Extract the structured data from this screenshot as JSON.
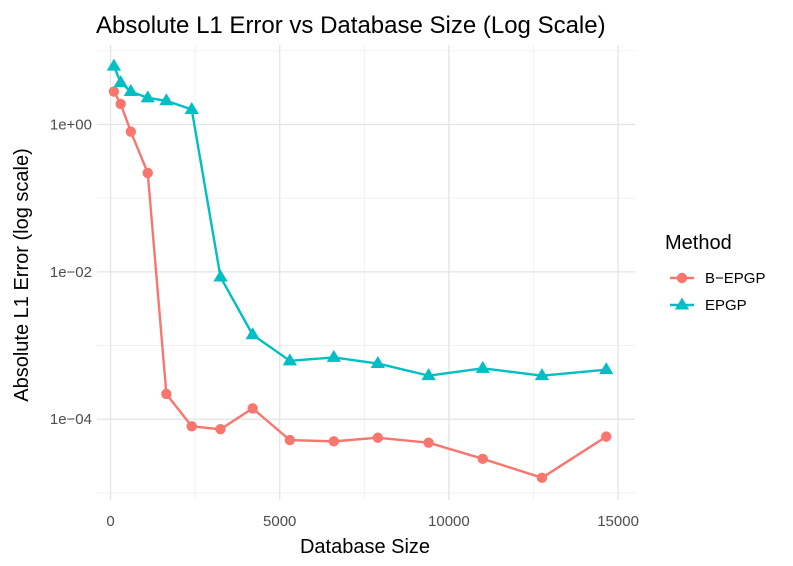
{
  "chart_data": {
    "type": "line",
    "title": "Absolute L1 Error vs Database Size (Log Scale)",
    "xlabel": "Database Size",
    "ylabel": "Absolute L1 Error (log scale)",
    "xlim": [
      -400,
      15500
    ],
    "ylim": [
      8e-06,
      12
    ],
    "y_scale": "log",
    "grid": true,
    "legend_position": "right",
    "legend_title": "Method",
    "x_ticks": [
      0,
      5000,
      10000,
      15000
    ],
    "x_tick_labels": [
      "0",
      "5000",
      "10000",
      "15000"
    ],
    "y_ticks": [
      1,
      0.01,
      0.0001
    ],
    "y_tick_labels": [
      "1e+00",
      "1e−02",
      "1e−04"
    ],
    "series": [
      {
        "name": "B−EPGP",
        "color": "#F8766D",
        "marker": "circle",
        "x": [
          100,
          300,
          600,
          1100,
          1650,
          2400,
          3250,
          4200,
          5300,
          6600,
          7900,
          9400,
          11000,
          12750,
          14650
        ],
        "y": [
          2.8,
          1.9,
          0.8,
          0.22,
          0.00022,
          8e-05,
          7.3e-05,
          0.00014,
          5.2e-05,
          5e-05,
          5.6e-05,
          4.8e-05,
          2.9e-05,
          1.6e-05,
          5.8e-05
        ]
      },
      {
        "name": "EPGP",
        "color": "#00BFC4",
        "marker": "triangle",
        "x": [
          100,
          300,
          600,
          1100,
          1650,
          2400,
          3250,
          4200,
          5300,
          6600,
          7900,
          9400,
          11000,
          12750,
          14650
        ],
        "y": [
          6.2,
          3.7,
          2.8,
          2.3,
          2.1,
          1.6,
          0.0085,
          0.0014,
          0.00062,
          0.00069,
          0.00057,
          0.00039,
          0.00049,
          0.00039,
          0.00047
        ]
      }
    ]
  }
}
